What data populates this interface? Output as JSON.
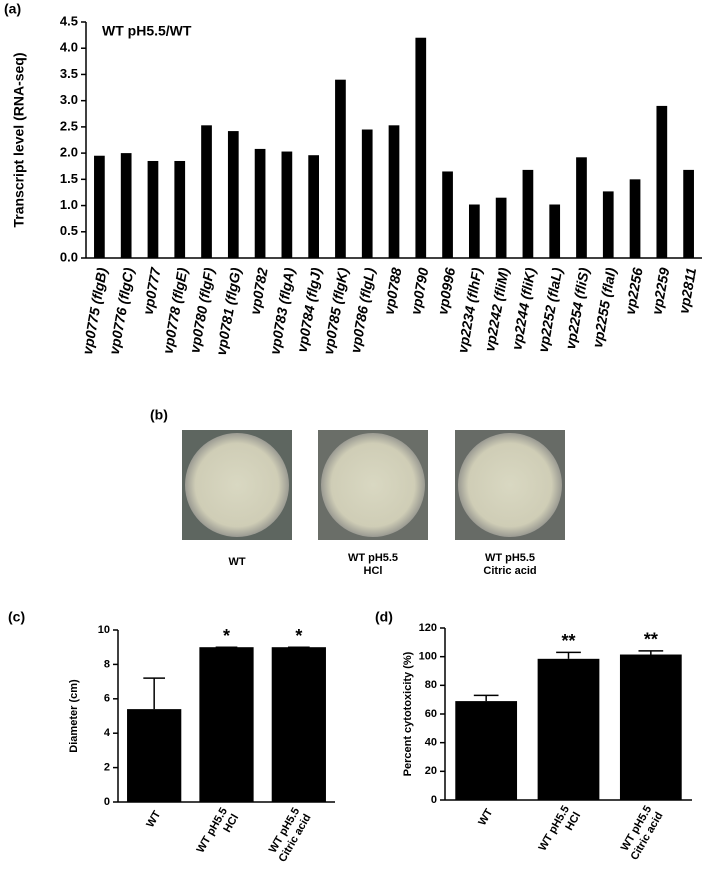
{
  "chart_data": [
    {
      "type": "bar",
      "panel_label": "(a)",
      "annotation": "WT pH5.5/WT",
      "y_label": "Transcript level (RNA-seq)",
      "color": "#000000",
      "categories": [
        "vp0775 (flgB)",
        "vp0776 (flgC)",
        "vp0777",
        "vp0778 (flgE)",
        "vp0780 (flgF)",
        "vp0781 (flgG)",
        "vp0782",
        "vp0783 (flgA)",
        "vp0784 (flgJ)",
        "vp0785 (flgK)",
        "vp0786 (flgL)",
        "vp0788",
        "vp0790",
        "vp0996",
        "vp2234 (flhF)",
        "vp2242 (fliM)",
        "vp2244 (fliK)",
        "vp2252 (flaL)",
        "vp2254 (fliS)",
        "vp2255 (flaI)",
        "vp2256",
        "vp2259",
        "vp2811"
      ],
      "values": [
        1.95,
        2.0,
        1.85,
        1.85,
        2.53,
        2.42,
        2.08,
        2.03,
        1.96,
        3.4,
        2.45,
        2.53,
        4.2,
        1.65,
        1.02,
        1.15,
        1.68,
        1.02,
        1.92,
        1.27,
        1.5,
        2.9,
        1.68
      ],
      "ylim": [
        0,
        4.5
      ],
      "yticks": [
        {
          "value": 0,
          "label": "0.0"
        },
        0.5,
        {
          "value": 1,
          "label": "1.0"
        },
        1.5,
        {
          "value": 2,
          "label": "2.0"
        },
        2.5,
        {
          "value": 3,
          "label": "3.0"
        },
        3.5,
        {
          "value": 4,
          "label": "4.0"
        },
        4.5
      ]
    },
    {
      "type": "bar",
      "panel_label": "(c)",
      "y_label": "Diameter (cm)",
      "color": "#000000",
      "categories": [
        [
          "WT"
        ],
        [
          "WT pH5.5",
          "HCl"
        ],
        [
          "WT pH5.5",
          "Citric acid"
        ]
      ],
      "values": [
        5.4,
        9.0,
        9.0
      ],
      "errors": [
        1.8,
        0,
        0
      ],
      "significance": [
        null,
        "*",
        "*"
      ],
      "ylim": [
        0,
        10
      ],
      "yticks": [
        0,
        2,
        4,
        6,
        8,
        10
      ]
    },
    {
      "type": "bar",
      "panel_label": "(d)",
      "y_label": "Percent cytotoxicity (%)",
      "color": "#000000",
      "categories": [
        [
          "WT"
        ],
        [
          "WT pH5.5",
          "HCl"
        ],
        [
          "WT pH5.5",
          "Citric acid"
        ]
      ],
      "values": [
        69,
        98.5,
        101.5
      ],
      "errors": [
        4,
        4.5,
        2.5
      ],
      "significance": [
        null,
        "**",
        "**"
      ],
      "ylim": [
        0,
        120
      ],
      "yticks": [
        0,
        20,
        40,
        60,
        80,
        100,
        120
      ]
    }
  ],
  "photo_panel": {
    "panel_label": "(b)",
    "captions": [
      [
        "WT"
      ],
      [
        "WT pH5.5",
        "HCl"
      ],
      [
        "WT pH5.5",
        "Citric acid"
      ]
    ]
  }
}
